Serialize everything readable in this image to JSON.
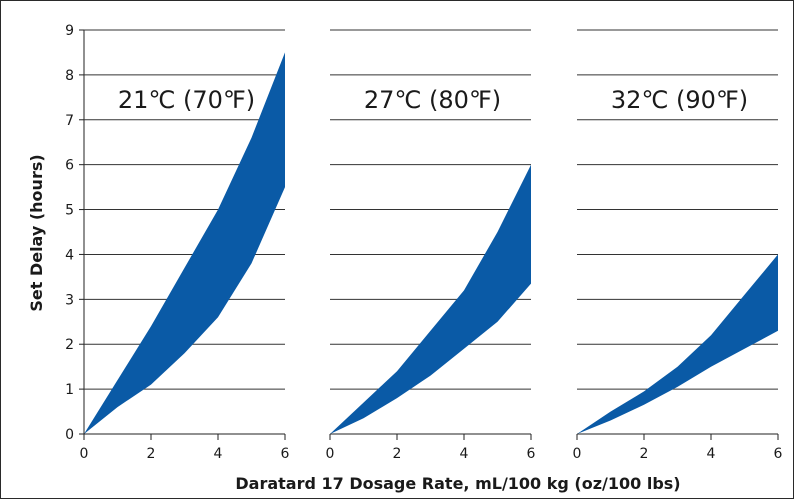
{
  "chart_data": {
    "type": "area",
    "ylabel": "Set Delay (hours)",
    "xlabel": "Daratard 17 Dosage Rate, mL/100 kg (oz/100 lbs)",
    "xlim": [
      0,
      6
    ],
    "ylim": [
      0,
      9
    ],
    "xticks": [
      0,
      2,
      4,
      6
    ],
    "yticks": [
      0,
      1,
      2,
      3,
      4,
      5,
      6,
      7,
      8,
      9
    ],
    "grid": "horizontal",
    "band_color": "#0a5aa6",
    "panels": [
      {
        "title": "21℃ (70℉)",
        "x": [
          0,
          1,
          2,
          3,
          4,
          5,
          6
        ],
        "upper": [
          0,
          1.2,
          2.4,
          3.7,
          5.0,
          6.6,
          8.5
        ],
        "lower": [
          0,
          0.6,
          1.1,
          1.8,
          2.6,
          3.8,
          5.5
        ]
      },
      {
        "title": "27℃ (80℉)",
        "x": [
          0,
          1,
          2,
          3,
          4,
          5,
          6
        ],
        "upper": [
          0,
          0.7,
          1.4,
          2.3,
          3.2,
          4.5,
          6.0
        ],
        "lower": [
          0,
          0.35,
          0.8,
          1.3,
          1.9,
          2.5,
          3.35
        ]
      },
      {
        "title": "32℃ (90℉)",
        "x": [
          0,
          1,
          2,
          3,
          4,
          5,
          6
        ],
        "upper": [
          0,
          0.5,
          0.95,
          1.5,
          2.2,
          3.1,
          4.0
        ],
        "lower": [
          0,
          0.3,
          0.65,
          1.05,
          1.5,
          1.9,
          2.3
        ]
      }
    ]
  }
}
